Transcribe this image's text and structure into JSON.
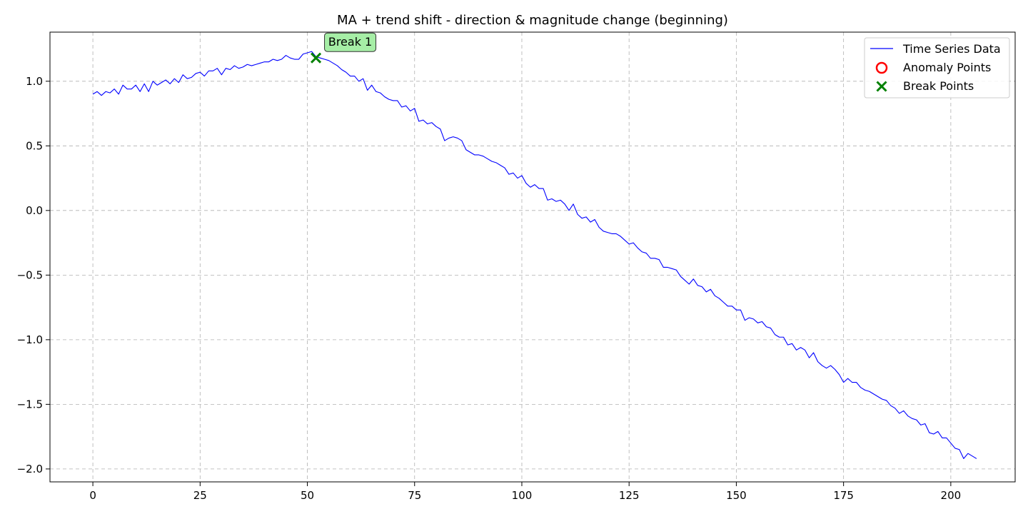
{
  "chart_data": {
    "type": "line",
    "title": "MA + trend shift - direction & magnitude change (beginning)",
    "xlabel": "",
    "ylabel": "",
    "xlim": [
      -10,
      215
    ],
    "ylim": [
      -2.1,
      1.38
    ],
    "x_ticks": [
      0,
      25,
      50,
      75,
      100,
      125,
      150,
      175,
      200
    ],
    "y_ticks": [
      1.0,
      0.5,
      0.0,
      -0.5,
      -1.0,
      -1.5,
      -2.0
    ],
    "y_tick_labels": [
      "1.0",
      "0.5",
      "0.0",
      "−0.5",
      "−1.0",
      "−1.5",
      "−2.0"
    ],
    "grid": true,
    "legend_position": "top-right",
    "series": [
      {
        "name": "Time Series Data",
        "color": "#0000ff",
        "y": [
          0.9,
          0.92,
          0.89,
          0.92,
          0.91,
          0.94,
          0.9,
          0.97,
          0.94,
          0.94,
          0.97,
          0.92,
          0.98,
          0.92,
          1.0,
          0.97,
          0.99,
          1.01,
          0.98,
          1.02,
          0.99,
          1.05,
          1.02,
          1.03,
          1.06,
          1.07,
          1.04,
          1.08,
          1.08,
          1.1,
          1.05,
          1.1,
          1.09,
          1.12,
          1.1,
          1.11,
          1.13,
          1.12,
          1.13,
          1.14,
          1.15,
          1.15,
          1.17,
          1.16,
          1.17,
          1.2,
          1.18,
          1.17,
          1.17,
          1.21,
          1.22,
          1.23,
          1.19,
          1.18,
          1.17,
          1.16,
          1.14,
          1.12,
          1.09,
          1.07,
          1.04,
          1.04,
          1.0,
          1.02,
          0.93,
          0.97,
          0.92,
          0.91,
          0.88,
          0.86,
          0.85,
          0.85,
          0.8,
          0.81,
          0.77,
          0.79,
          0.69,
          0.7,
          0.67,
          0.68,
          0.65,
          0.63,
          0.54,
          0.56,
          0.57,
          0.56,
          0.54,
          0.47,
          0.45,
          0.43,
          0.43,
          0.42,
          0.4,
          0.38,
          0.37,
          0.35,
          0.33,
          0.28,
          0.29,
          0.25,
          0.27,
          0.21,
          0.18,
          0.2,
          0.17,
          0.17,
          0.08,
          0.09,
          0.07,
          0.08,
          0.05,
          0.0,
          0.05,
          -0.03,
          -0.06,
          -0.05,
          -0.09,
          -0.07,
          -0.13,
          -0.16,
          -0.17,
          -0.18,
          -0.18,
          -0.2,
          -0.23,
          -0.26,
          -0.25,
          -0.29,
          -0.32,
          -0.33,
          -0.37,
          -0.37,
          -0.38,
          -0.44,
          -0.44,
          -0.45,
          -0.46,
          -0.51,
          -0.54,
          -0.57,
          -0.53,
          -0.58,
          -0.59,
          -0.63,
          -0.61,
          -0.66,
          -0.68,
          -0.71,
          -0.74,
          -0.74,
          -0.77,
          -0.77,
          -0.85,
          -0.83,
          -0.84,
          -0.87,
          -0.86,
          -0.9,
          -0.91,
          -0.96,
          -0.98,
          -0.98,
          -1.04,
          -1.03,
          -1.08,
          -1.06,
          -1.08,
          -1.14,
          -1.1,
          -1.17,
          -1.2,
          -1.22,
          -1.2,
          -1.23,
          -1.27,
          -1.33,
          -1.3,
          -1.33,
          -1.33,
          -1.37,
          -1.39,
          -1.4,
          -1.42,
          -1.44,
          -1.46,
          -1.47,
          -1.51,
          -1.53,
          -1.57,
          -1.55,
          -1.59,
          -1.61,
          -1.62,
          -1.66,
          -1.65,
          -1.72,
          -1.73,
          -1.71,
          -1.76,
          -1.76,
          -1.8,
          -1.84,
          -1.85,
          -1.92,
          -1.88,
          -1.9,
          -1.92
        ]
      }
    ],
    "anomaly_points": {
      "name": "Anomaly Points",
      "color": "#ff0000",
      "points": []
    },
    "break_points": {
      "name": "Break Points",
      "color": "#008000",
      "points": [
        {
          "x": 52,
          "y": 1.18,
          "label": "Break 1"
        }
      ]
    }
  }
}
